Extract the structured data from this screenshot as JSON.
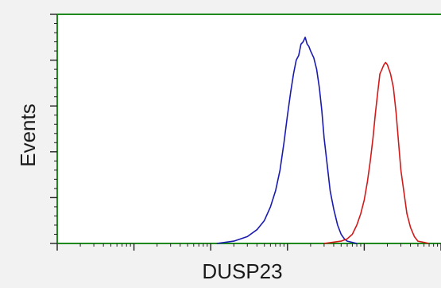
{
  "chart_data": {
    "type": "line",
    "xlabel": "DUSP23",
    "ylabel": "Events",
    "x_scale": "log",
    "xlim": [
      1,
      100000
    ],
    "ylim": [
      0,
      100
    ],
    "grid": false,
    "legend": "none",
    "axis_color": "#1e8a1e",
    "series": [
      {
        "color": "#1a1ab0",
        "x": [
          120,
          200,
          300,
          400,
          500,
          600,
          700,
          800,
          900,
          1000,
          1100,
          1200,
          1300,
          1400,
          1500,
          1600,
          1700,
          1800,
          1900,
          2000,
          2200,
          2400,
          2600,
          2800,
          3000,
          3300,
          3600,
          4000,
          4500,
          5000,
          5500,
          6000,
          7000,
          8000
        ],
        "y": [
          0,
          1,
          3,
          6,
          10,
          16,
          23,
          32,
          44,
          56,
          66,
          74,
          80,
          82,
          87,
          88,
          90,
          87,
          86,
          84,
          81,
          76,
          68,
          58,
          46,
          34,
          23,
          15,
          8,
          4,
          2,
          1,
          0.5,
          0
        ]
      },
      {
        "color": "#d11a1a",
        "x": [
          3000,
          5000,
          6000,
          7000,
          8000,
          9000,
          10000,
          11000,
          12000,
          13000,
          14000,
          15000,
          16000,
          17000,
          18000,
          19000,
          20000,
          22000,
          24000,
          26000,
          28000,
          30000,
          33000,
          36000,
          40000,
          45000,
          50000,
          60000,
          70000
        ],
        "y": [
          0,
          1,
          2,
          4,
          8,
          13,
          19,
          27,
          36,
          46,
          57,
          66,
          74,
          76,
          78,
          79,
          78,
          74,
          68,
          57,
          44,
          32,
          22,
          13,
          7,
          3,
          1,
          0.5,
          0
        ]
      }
    ]
  }
}
